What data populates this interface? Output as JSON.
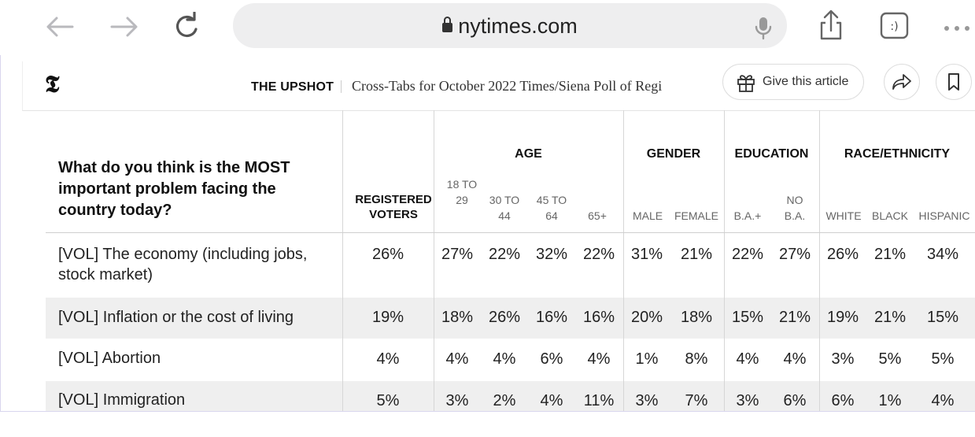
{
  "browser": {
    "url": "nytimes.com"
  },
  "article_bar": {
    "logo": "𝕿",
    "section": "THE UPSHOT",
    "title": "Cross-Tabs for October 2022 Times/Siena Poll of Regi",
    "give_label": "Give this article"
  },
  "table": {
    "question": "What do you think is the MOST important problem facing the country today?",
    "registered_header": "REGISTERED VOTERS",
    "groups": [
      {
        "label": "AGE",
        "subs": [
          "18 TO 29",
          "30 TO 44",
          "45 TO 64",
          "65+"
        ]
      },
      {
        "label": "GENDER",
        "subs": [
          "MALE",
          "FEMALE"
        ]
      },
      {
        "label": "EDUCATION",
        "subs": [
          "B.A.+",
          "NO B.A."
        ]
      },
      {
        "label": "RACE/ETHNICITY",
        "subs": [
          "WHITE",
          "BLACK",
          "HISPANIC"
        ]
      }
    ],
    "rows": [
      {
        "label": "[VOL] The economy (including jobs, stock market)",
        "registered": "26%",
        "values": [
          "27%",
          "22%",
          "32%",
          "22%",
          "31%",
          "21%",
          "22%",
          "27%",
          "26%",
          "21%",
          "34%"
        ]
      },
      {
        "label": "[VOL] Inflation or the cost of living",
        "registered": "19%",
        "values": [
          "18%",
          "26%",
          "16%",
          "16%",
          "20%",
          "18%",
          "15%",
          "21%",
          "19%",
          "21%",
          "15%"
        ]
      },
      {
        "label": "[VOL] Abortion",
        "registered": "4%",
        "values": [
          "4%",
          "4%",
          "6%",
          "4%",
          "1%",
          "8%",
          "4%",
          "4%",
          "3%",
          "5%",
          "5%"
        ]
      },
      {
        "label": "[VOL] Immigration",
        "registered": "5%",
        "values": [
          "3%",
          "2%",
          "4%",
          "11%",
          "3%",
          "7%",
          "3%",
          "6%",
          "6%",
          "1%",
          "4%"
        ]
      }
    ]
  }
}
